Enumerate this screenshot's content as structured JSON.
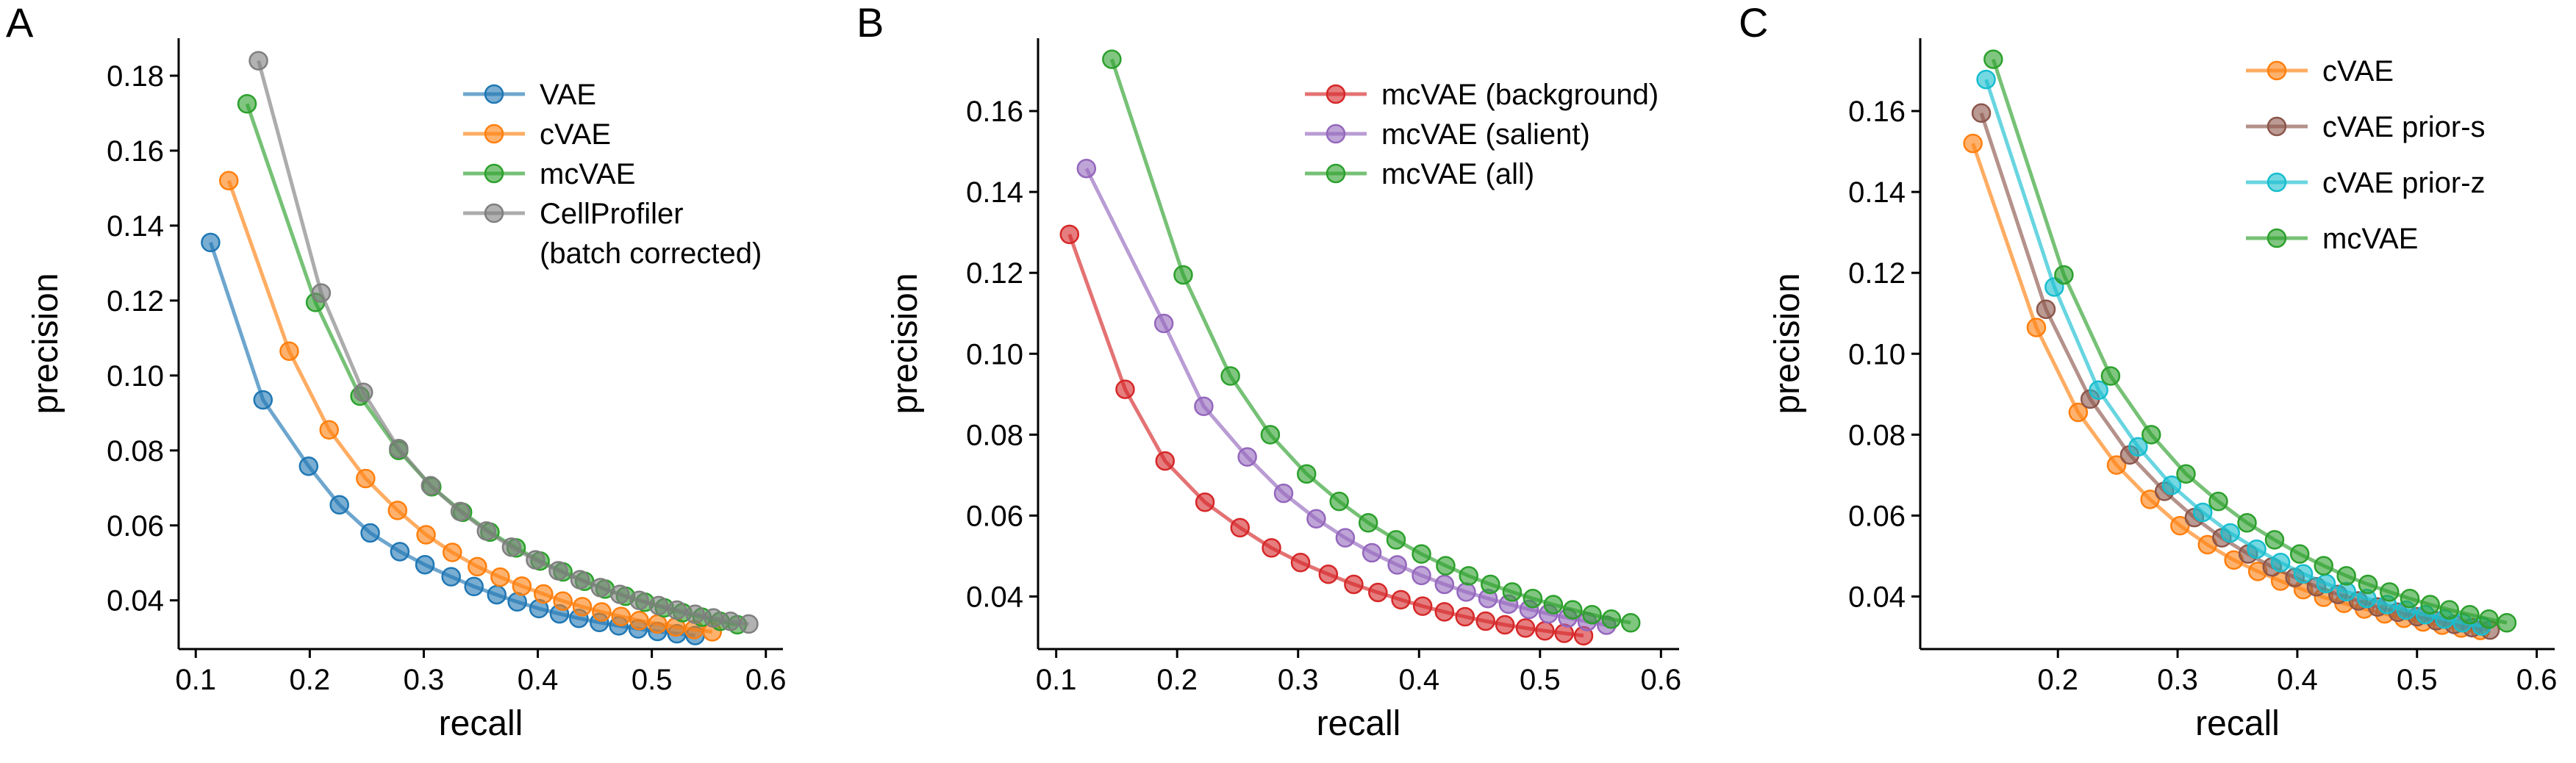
{
  "chart_data": [
    {
      "panel_label": "A",
      "type": "line",
      "xlabel": "recall",
      "ylabel": "precision",
      "xlim": [
        0.085,
        0.615
      ],
      "ylim": [
        0.027,
        0.19
      ],
      "xticks": [
        0.1,
        0.2,
        0.3,
        0.4,
        0.5,
        0.6
      ],
      "xtick_labels": [
        "0.1",
        "0.2",
        "0.3",
        "0.4",
        "0.5",
        "0.6"
      ],
      "yticks": [
        0.04,
        0.06,
        0.08,
        0.1,
        0.12,
        0.14,
        0.16,
        0.18
      ],
      "ytick_labels": [
        "0.04",
        "0.06",
        "0.08",
        "0.10",
        "0.12",
        "0.14",
        "0.16",
        "0.18"
      ],
      "legend": "top-right",
      "grid": false,
      "series": [
        {
          "name": "VAE",
          "color": "#1f77b4",
          "x": [
            0.113,
            0.159,
            0.199,
            0.226,
            0.253,
            0.279,
            0.301,
            0.324,
            0.344,
            0.364,
            0.382,
            0.401,
            0.419,
            0.436,
            0.454,
            0.471,
            0.488,
            0.505,
            0.522,
            0.538
          ],
          "y": [
            0.1355,
            0.0935,
            0.0758,
            0.0655,
            0.058,
            0.053,
            0.0495,
            0.0463,
            0.0437,
            0.0415,
            0.0396,
            0.0378,
            0.0364,
            0.0352,
            0.0341,
            0.0332,
            0.0324,
            0.0317,
            0.0311,
            0.0306
          ]
        },
        {
          "name": "cVAE",
          "color": "#ff7f0e",
          "x": [
            0.129,
            0.182,
            0.217,
            0.249,
            0.277,
            0.302,
            0.325,
            0.347,
            0.367,
            0.386,
            0.405,
            0.422,
            0.439,
            0.456,
            0.473,
            0.489,
            0.505,
            0.521,
            0.537,
            0.553
          ],
          "y": [
            0.152,
            0.1065,
            0.0855,
            0.0725,
            0.064,
            0.0575,
            0.0528,
            0.049,
            0.0462,
            0.0438,
            0.0417,
            0.0398,
            0.0383,
            0.0369,
            0.0357,
            0.0346,
            0.0337,
            0.0329,
            0.0322,
            0.0316
          ]
        },
        {
          "name": "mcVAE",
          "color": "#2ca02c",
          "x": [
            0.145,
            0.205,
            0.244,
            0.278,
            0.307,
            0.334,
            0.358,
            0.381,
            0.402,
            0.422,
            0.441,
            0.459,
            0.477,
            0.494,
            0.511,
            0.527,
            0.544,
            0.56,
            0.575
          ],
          "y": [
            0.1725,
            0.1195,
            0.0945,
            0.08,
            0.0703,
            0.0635,
            0.0582,
            0.054,
            0.0505,
            0.0476,
            0.0451,
            0.043,
            0.0411,
            0.0395,
            0.038,
            0.0367,
            0.0355,
            0.0344,
            0.0335
          ]
        },
        {
          "name": "CellProfiler\n(batch corrected)",
          "color": "#7f7f7f",
          "x": [
            0.155,
            0.21,
            0.247,
            0.278,
            0.306,
            0.332,
            0.355,
            0.377,
            0.398,
            0.418,
            0.437,
            0.455,
            0.472,
            0.489,
            0.506,
            0.522,
            0.538,
            0.554,
            0.569,
            0.585
          ],
          "y": [
            0.184,
            0.122,
            0.0955,
            0.0805,
            0.0706,
            0.0637,
            0.0585,
            0.0542,
            0.0508,
            0.0479,
            0.0455,
            0.0434,
            0.0416,
            0.04,
            0.0386,
            0.0374,
            0.0363,
            0.0353,
            0.0344,
            0.0337
          ]
        }
      ]
    },
    {
      "panel_label": "B",
      "type": "line",
      "xlabel": "recall",
      "ylabel": "precision",
      "xlim": [
        0.085,
        0.615
      ],
      "ylim": [
        0.027,
        0.178
      ],
      "xticks": [
        0.1,
        0.2,
        0.3,
        0.4,
        0.5,
        0.6
      ],
      "xtick_labels": [
        "0.1",
        "0.2",
        "0.3",
        "0.4",
        "0.5",
        "0.6"
      ],
      "yticks": [
        0.04,
        0.06,
        0.08,
        0.1,
        0.12,
        0.14,
        0.16
      ],
      "ytick_labels": [
        "0.04",
        "0.06",
        "0.08",
        "0.10",
        "0.12",
        "0.14",
        "0.16"
      ],
      "legend": "top-right",
      "grid": false,
      "series": [
        {
          "name": "mcVAE (background)",
          "color": "#d62728",
          "x": [
            0.111,
            0.157,
            0.19,
            0.223,
            0.252,
            0.278,
            0.302,
            0.325,
            0.346,
            0.366,
            0.385,
            0.403,
            0.421,
            0.438,
            0.455,
            0.471,
            0.488,
            0.504,
            0.52,
            0.536
          ],
          "y": [
            0.1295,
            0.0912,
            0.0735,
            0.0633,
            0.057,
            0.052,
            0.0484,
            0.0455,
            0.043,
            0.041,
            0.0392,
            0.0376,
            0.0362,
            0.035,
            0.0339,
            0.033,
            0.0322,
            0.0315,
            0.0309,
            0.0303
          ]
        },
        {
          "name": "mcVAE (salient)",
          "color": "#9467bd",
          "x": [
            0.125,
            0.189,
            0.222,
            0.258,
            0.288,
            0.315,
            0.339,
            0.361,
            0.382,
            0.402,
            0.421,
            0.439,
            0.457,
            0.474,
            0.491,
            0.507,
            0.523,
            0.539,
            0.555
          ],
          "y": [
            0.1458,
            0.1075,
            0.087,
            0.0745,
            0.0655,
            0.0592,
            0.0545,
            0.0508,
            0.0478,
            0.0452,
            0.043,
            0.0411,
            0.0395,
            0.0381,
            0.0368,
            0.0357,
            0.0347,
            0.0338,
            0.0329
          ]
        },
        {
          "name": "mcVAE (all)",
          "color": "#2ca02c",
          "x": [
            0.146,
            0.205,
            0.244,
            0.277,
            0.307,
            0.334,
            0.358,
            0.381,
            0.402,
            0.422,
            0.441,
            0.459,
            0.477,
            0.494,
            0.511,
            0.527,
            0.543,
            0.559,
            0.575
          ],
          "y": [
            0.1728,
            0.1195,
            0.0945,
            0.08,
            0.0703,
            0.0635,
            0.0582,
            0.054,
            0.0505,
            0.0476,
            0.0451,
            0.043,
            0.0411,
            0.0395,
            0.038,
            0.0367,
            0.0355,
            0.0344,
            0.0335
          ]
        }
      ]
    },
    {
      "panel_label": "C",
      "type": "line",
      "xlabel": "recall",
      "ylabel": "precision",
      "xlim": [
        0.085,
        0.615
      ],
      "ylim": [
        0.027,
        0.178
      ],
      "xticks": [
        0.2,
        0.3,
        0.4,
        0.5,
        0.6
      ],
      "xtick_labels": [
        "0.2",
        "0.3",
        "0.4",
        "0.5",
        "0.6"
      ],
      "yticks": [
        0.04,
        0.06,
        0.08,
        0.1,
        0.12,
        0.14,
        0.16
      ],
      "ytick_labels": [
        "0.04",
        "0.06",
        "0.08",
        "0.10",
        "0.12",
        "0.14",
        "0.16"
      ],
      "legend": "top-right",
      "grid": false,
      "series": [
        {
          "name": "cVAE",
          "color": "#ff7f0e",
          "x": [
            0.129,
            0.182,
            0.217,
            0.249,
            0.277,
            0.302,
            0.325,
            0.347,
            0.367,
            0.386,
            0.405,
            0.422,
            0.439,
            0.456,
            0.473,
            0.489,
            0.505,
            0.521,
            0.537,
            0.553
          ],
          "y": [
            0.152,
            0.1065,
            0.0855,
            0.0725,
            0.064,
            0.0575,
            0.0528,
            0.049,
            0.0462,
            0.0438,
            0.0417,
            0.0398,
            0.0383,
            0.0369,
            0.0357,
            0.0346,
            0.0337,
            0.0329,
            0.0322,
            0.0316
          ]
        },
        {
          "name": "cVAE prior-s",
          "color": "#8c564b",
          "x": [
            0.136,
            0.19,
            0.227,
            0.26,
            0.289,
            0.314,
            0.337,
            0.359,
            0.379,
            0.398,
            0.416,
            0.434,
            0.451,
            0.467,
            0.484,
            0.5,
            0.516,
            0.531,
            0.546,
            0.561
          ],
          "y": [
            0.1595,
            0.111,
            0.0888,
            0.075,
            0.066,
            0.0595,
            0.0545,
            0.0505,
            0.0473,
            0.0447,
            0.0424,
            0.0405,
            0.0389,
            0.0374,
            0.0361,
            0.035,
            0.034,
            0.0331,
            0.0323,
            0.0317
          ]
        },
        {
          "name": "cVAE prior-z",
          "color": "#17becf",
          "x": [
            0.14,
            0.197,
            0.234,
            0.267,
            0.295,
            0.321,
            0.344,
            0.366,
            0.386,
            0.405,
            0.424,
            0.441,
            0.458,
            0.475,
            0.491,
            0.507,
            0.523,
            0.538,
            0.554
          ],
          "y": [
            0.1678,
            0.1165,
            0.091,
            0.077,
            0.0675,
            0.0608,
            0.0557,
            0.0517,
            0.0484,
            0.0456,
            0.0432,
            0.0412,
            0.0395,
            0.038,
            0.0366,
            0.0355,
            0.0344,
            0.0335,
            0.0327
          ]
        },
        {
          "name": "mcVAE",
          "color": "#2ca02c",
          "x": [
            0.146,
            0.205,
            0.244,
            0.278,
            0.307,
            0.334,
            0.358,
            0.381,
            0.402,
            0.422,
            0.441,
            0.459,
            0.477,
            0.494,
            0.511,
            0.527,
            0.544,
            0.56,
            0.575
          ],
          "y": [
            0.1728,
            0.1195,
            0.0945,
            0.08,
            0.0703,
            0.0635,
            0.0582,
            0.054,
            0.0505,
            0.0476,
            0.0451,
            0.043,
            0.0411,
            0.0395,
            0.038,
            0.0367,
            0.0355,
            0.0344,
            0.0335
          ]
        }
      ]
    }
  ]
}
